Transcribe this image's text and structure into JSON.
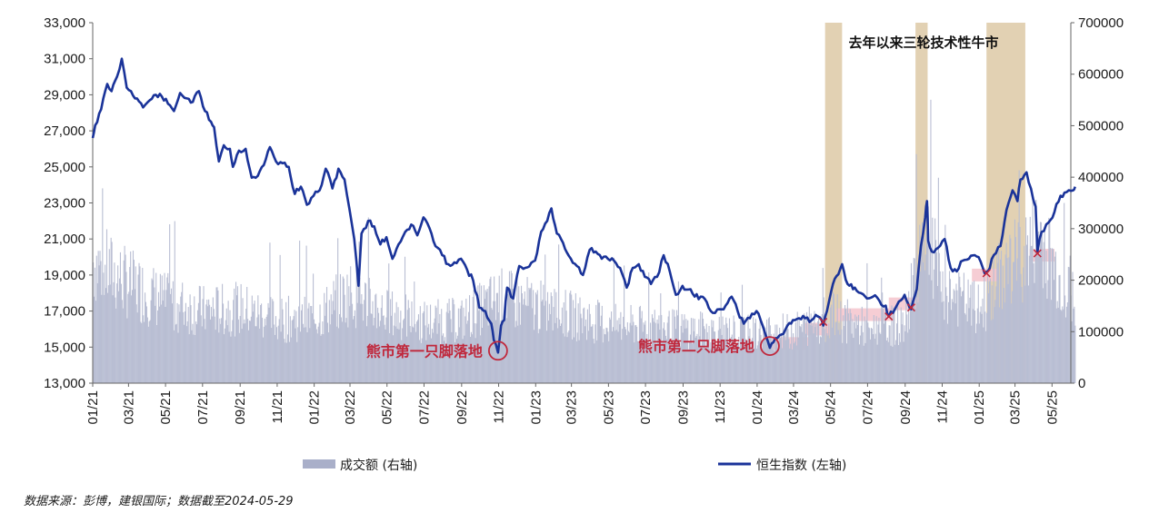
{
  "source": "数据来源：彭博，建银国际；数据截至2024-05-29",
  "colors": {
    "index_line": "#1a3399",
    "volume_bar": "#b9bed3",
    "shade": "#d8c29a",
    "band": "#f5c4cd",
    "marker": "#c0283c"
  },
  "chart_data": {
    "type": "bar+line",
    "left_axis": {
      "min": 13000,
      "max": 33000,
      "ticks": [
        "13,000",
        "15,000",
        "17,000",
        "19,000",
        "21,000",
        "23,000",
        "25,000",
        "27,000",
        "29,000",
        "31,000",
        "33,000"
      ]
    },
    "right_axis": {
      "min": 0,
      "max": 700000,
      "ticks": [
        "0",
        "100000",
        "200000",
        "300000",
        "400000",
        "500000",
        "600000",
        "700000"
      ]
    },
    "x_ticks": [
      "01/21",
      "03/21",
      "05/21",
      "07/21",
      "09/21",
      "11/21",
      "01/22",
      "03/22",
      "05/22",
      "07/22",
      "09/22",
      "11/22",
      "01/23",
      "03/23",
      "05/23",
      "07/23",
      "09/23",
      "11/23",
      "01/24",
      "03/24",
      "05/24",
      "07/24",
      "09/24",
      "11/24",
      "01/25",
      "03/25",
      "05/25"
    ],
    "x_range": [
      "2021-01",
      "2025-06"
    ],
    "series": [
      {
        "name": "恒生指数 (左轴)",
        "kind": "line",
        "axis": "left",
        "points": [
          [
            "2021-01-01",
            26600
          ],
          [
            "2021-01-05",
            27300
          ],
          [
            "2021-01-15",
            28200
          ],
          [
            "2021-01-25",
            29600
          ],
          [
            "2021-02-01",
            29200
          ],
          [
            "2021-02-10",
            30000
          ],
          [
            "2021-02-18",
            31000
          ],
          [
            "2021-02-26",
            29400
          ],
          [
            "2021-03-05",
            29200
          ],
          [
            "2021-03-15",
            28800
          ],
          [
            "2021-03-25",
            28300
          ],
          [
            "2021-04-05",
            28700
          ],
          [
            "2021-04-15",
            29000
          ],
          [
            "2021-04-25",
            28900
          ],
          [
            "2021-05-05",
            28500
          ],
          [
            "2021-05-15",
            28100
          ],
          [
            "2021-05-25",
            29100
          ],
          [
            "2021-06-05",
            28800
          ],
          [
            "2021-06-15",
            28600
          ],
          [
            "2021-06-25",
            29200
          ],
          [
            "2021-07-05",
            28100
          ],
          [
            "2021-07-15",
            27500
          ],
          [
            "2021-07-20",
            27200
          ],
          [
            "2021-07-28",
            25300
          ],
          [
            "2021-08-05",
            26200
          ],
          [
            "2021-08-15",
            26000
          ],
          [
            "2021-08-20",
            25000
          ],
          [
            "2021-08-30",
            25900
          ],
          [
            "2021-09-10",
            26000
          ],
          [
            "2021-09-20",
            24400
          ],
          [
            "2021-09-30",
            24500
          ],
          [
            "2021-10-10",
            25100
          ],
          [
            "2021-10-20",
            26100
          ],
          [
            "2021-10-30",
            25300
          ],
          [
            "2021-11-10",
            25200
          ],
          [
            "2021-11-20",
            25000
          ],
          [
            "2021-11-30",
            23500
          ],
          [
            "2021-12-10",
            23900
          ],
          [
            "2021-12-20",
            22900
          ],
          [
            "2021-12-31",
            23400
          ],
          [
            "2022-01-10",
            23700
          ],
          [
            "2022-01-20",
            24900
          ],
          [
            "2022-01-31",
            23800
          ],
          [
            "2022-02-10",
            24900
          ],
          [
            "2022-02-20",
            24300
          ],
          [
            "2022-02-28",
            22700
          ],
          [
            "2022-03-08",
            21000
          ],
          [
            "2022-03-15",
            18400
          ],
          [
            "2022-03-20",
            21300
          ],
          [
            "2022-03-31",
            22000
          ],
          [
            "2022-04-10",
            21700
          ],
          [
            "2022-04-20",
            20700
          ],
          [
            "2022-04-30",
            21100
          ],
          [
            "2022-05-10",
            19900
          ],
          [
            "2022-05-20",
            20700
          ],
          [
            "2022-05-31",
            21400
          ],
          [
            "2022-06-10",
            21800
          ],
          [
            "2022-06-20",
            21200
          ],
          [
            "2022-06-30",
            22200
          ],
          [
            "2022-07-10",
            21600
          ],
          [
            "2022-07-20",
            20600
          ],
          [
            "2022-07-31",
            20100
          ],
          [
            "2022-08-10",
            19600
          ],
          [
            "2022-08-20",
            19700
          ],
          [
            "2022-08-31",
            19900
          ],
          [
            "2022-09-10",
            19300
          ],
          [
            "2022-09-20",
            18700
          ],
          [
            "2022-09-30",
            17200
          ],
          [
            "2022-10-10",
            17000
          ],
          [
            "2022-10-20",
            16300
          ],
          [
            "2022-10-24",
            15400
          ],
          [
            "2022-10-31",
            14700
          ],
          [
            "2022-11-05",
            16200
          ],
          [
            "2022-11-10",
            16500
          ],
          [
            "2022-11-15",
            18300
          ],
          [
            "2022-11-25",
            17700
          ],
          [
            "2022-12-05",
            19500
          ],
          [
            "2022-12-15",
            19400
          ],
          [
            "2022-12-31",
            19800
          ],
          [
            "2023-01-10",
            21400
          ],
          [
            "2023-01-20",
            22000
          ],
          [
            "2023-01-27",
            22700
          ],
          [
            "2023-02-05",
            21300
          ],
          [
            "2023-02-15",
            20800
          ],
          [
            "2023-02-28",
            19900
          ],
          [
            "2023-03-10",
            19500
          ],
          [
            "2023-03-20",
            19000
          ],
          [
            "2023-03-31",
            20400
          ],
          [
            "2023-04-10",
            20300
          ],
          [
            "2023-04-20",
            19900
          ],
          [
            "2023-04-30",
            19900
          ],
          [
            "2023-05-10",
            19800
          ],
          [
            "2023-05-20",
            19400
          ],
          [
            "2023-05-31",
            18300
          ],
          [
            "2023-06-10",
            19400
          ],
          [
            "2023-06-20",
            19600
          ],
          [
            "2023-06-30",
            18900
          ],
          [
            "2023-07-10",
            18500
          ],
          [
            "2023-07-20",
            18900
          ],
          [
            "2023-07-31",
            20100
          ],
          [
            "2023-08-10",
            19200
          ],
          [
            "2023-08-20",
            17900
          ],
          [
            "2023-08-31",
            18400
          ],
          [
            "2023-09-10",
            18200
          ],
          [
            "2023-09-20",
            17800
          ],
          [
            "2023-09-30",
            17800
          ],
          [
            "2023-10-10",
            17500
          ],
          [
            "2023-10-20",
            16900
          ],
          [
            "2023-10-31",
            17100
          ],
          [
            "2023-11-10",
            17300
          ],
          [
            "2023-11-20",
            17800
          ],
          [
            "2023-11-30",
            17000
          ],
          [
            "2023-12-10",
            16300
          ],
          [
            "2023-12-20",
            16600
          ],
          [
            "2023-12-31",
            17000
          ],
          [
            "2024-01-10",
            16200
          ],
          [
            "2024-01-22",
            14960
          ],
          [
            "2024-01-31",
            15500
          ],
          [
            "2024-02-10",
            15700
          ],
          [
            "2024-02-20",
            16200
          ],
          [
            "2024-02-29",
            16500
          ],
          [
            "2024-03-10",
            16600
          ],
          [
            "2024-03-20",
            16600
          ],
          [
            "2024-03-31",
            16500
          ],
          [
            "2024-04-10",
            16700
          ],
          [
            "2024-04-19",
            16200
          ],
          [
            "2024-04-25",
            17000
          ],
          [
            "2024-05-05",
            18500
          ],
          [
            "2024-05-20",
            19600
          ],
          [
            "2024-05-29",
            18500
          ],
          [
            "2024-06-10",
            18300
          ],
          [
            "2024-06-20",
            18000
          ],
          [
            "2024-06-30",
            17700
          ],
          [
            "2024-07-10",
            17800
          ],
          [
            "2024-07-20",
            17600
          ],
          [
            "2024-07-31",
            17300
          ],
          [
            "2024-08-05",
            16700
          ],
          [
            "2024-08-15",
            17100
          ],
          [
            "2024-08-25",
            17600
          ],
          [
            "2024-08-31",
            17900
          ],
          [
            "2024-09-06",
            17400
          ],
          [
            "2024-09-11",
            17100
          ],
          [
            "2024-09-20",
            18200
          ],
          [
            "2024-09-27",
            20600
          ],
          [
            "2024-10-04",
            22200
          ],
          [
            "2024-10-07",
            23100
          ],
          [
            "2024-10-09",
            20900
          ],
          [
            "2024-10-15",
            20300
          ],
          [
            "2024-10-25",
            20500
          ],
          [
            "2024-11-05",
            21000
          ],
          [
            "2024-11-15",
            19400
          ],
          [
            "2024-11-25",
            19200
          ],
          [
            "2024-12-05",
            19800
          ],
          [
            "2024-12-15",
            19900
          ],
          [
            "2024-12-31",
            20000
          ],
          [
            "2025-01-10",
            19100
          ],
          [
            "2025-01-15",
            19200
          ],
          [
            "2025-01-25",
            20100
          ],
          [
            "2025-02-05",
            20600
          ],
          [
            "2025-02-15",
            22600
          ],
          [
            "2025-02-25",
            23700
          ],
          [
            "2025-03-05",
            23100
          ],
          [
            "2025-03-10",
            24300
          ],
          [
            "2025-03-20",
            24700
          ],
          [
            "2025-03-31",
            23200
          ],
          [
            "2025-04-04",
            22800
          ],
          [
            "2025-04-07",
            20300
          ],
          [
            "2025-04-14",
            21400
          ],
          [
            "2025-04-25",
            21900
          ],
          [
            "2025-05-05",
            22500
          ],
          [
            "2025-05-15",
            23400
          ],
          [
            "2025-05-25",
            23600
          ],
          [
            "2025-06-05",
            23700
          ],
          [
            "2025-06-08",
            23900
          ]
        ]
      },
      {
        "name": "成交额 (右轴)",
        "kind": "bar",
        "axis": "right",
        "baseline_points": [
          [
            "2021-01-01",
            270000
          ],
          [
            "2021-03-01",
            220000
          ],
          [
            "2021-05-01",
            180000
          ],
          [
            "2021-07-01",
            160000
          ],
          [
            "2021-09-01",
            165000
          ],
          [
            "2021-11-01",
            140000
          ],
          [
            "2022-01-01",
            145000
          ],
          [
            "2022-03-01",
            200000
          ],
          [
            "2022-05-01",
            155000
          ],
          [
            "2022-07-01",
            135000
          ],
          [
            "2022-09-01",
            140000
          ],
          [
            "2022-11-01",
            190000
          ],
          [
            "2023-01-01",
            170000
          ],
          [
            "2023-03-01",
            150000
          ],
          [
            "2023-05-01",
            130000
          ],
          [
            "2023-07-01",
            125000
          ],
          [
            "2023-09-01",
            120000
          ],
          [
            "2023-11-01",
            115000
          ],
          [
            "2024-01-01",
            110000
          ],
          [
            "2024-03-01",
            115000
          ],
          [
            "2024-05-01",
            150000
          ],
          [
            "2024-07-01",
            120000
          ],
          [
            "2024-09-01",
            130000
          ],
          [
            "2024-10-01",
            350000
          ],
          [
            "2024-11-01",
            210000
          ],
          [
            "2025-01-01",
            160000
          ],
          [
            "2025-02-15",
            260000
          ],
          [
            "2025-03-15",
            280000
          ],
          [
            "2025-04-10",
            330000
          ],
          [
            "2025-05-15",
            220000
          ],
          [
            "2025-06-08",
            200000
          ]
        ]
      }
    ],
    "shaded_periods": [
      [
        "2024-04-22",
        "2024-05-20"
      ],
      [
        "2024-09-18",
        "2024-10-08"
      ],
      [
        "2025-01-13",
        "2025-03-18"
      ]
    ],
    "pink_bands": [
      {
        "from": "2024-01-25",
        "to": "2024-03-25",
        "y": 15200
      },
      {
        "from": "2024-03-20",
        "to": "2024-04-30",
        "y": 16000
      },
      {
        "from": "2024-05-10",
        "to": "2024-08-15",
        "y": 16800
      },
      {
        "from": "2024-08-05",
        "to": "2024-09-28",
        "y": 17400
      },
      {
        "from": "2024-12-20",
        "to": "2025-02-01",
        "y": 19000
      },
      {
        "from": "2025-03-25",
        "to": "2025-05-05",
        "y": 20100
      }
    ],
    "x_markers": [
      [
        "2024-04-19",
        16400
      ],
      [
        "2024-08-05",
        16700
      ],
      [
        "2024-09-11",
        17200
      ],
      [
        "2025-01-13",
        19100
      ],
      [
        "2025-04-07",
        20200
      ]
    ],
    "annotations": [
      {
        "text": "去年以来三轮技术性牛市",
        "kind": "title"
      },
      {
        "text": "熊市第一只脚落地",
        "kind": "bottom",
        "date": "2022-10-31",
        "value": 14700
      },
      {
        "text": "熊市第二只脚落地",
        "kind": "bottom",
        "date": "2024-01-22",
        "value": 14960
      }
    ]
  }
}
